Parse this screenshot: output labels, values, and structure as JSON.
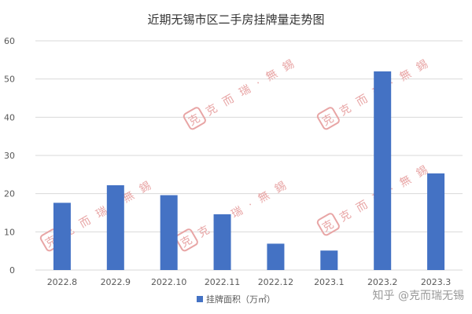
{
  "watermark": {
    "text": "克 而 瑞 · 無 錫",
    "logo_glyph": "克"
  },
  "credit": "知乎 @克而瑞无锡",
  "chart_data": {
    "type": "bar",
    "title": "近期无锡市区二手房挂牌量走势图",
    "categories": [
      "2022.8",
      "2022.9",
      "2022.10",
      "2022.11",
      "2022.12",
      "2023.1",
      "2023.2",
      "2023.3"
    ],
    "series": [
      {
        "name": "挂牌面积（万㎡）",
        "values": [
          17.6,
          22.2,
          19.6,
          14.6,
          6.9,
          5.1,
          52.0,
          25.3
        ],
        "color": "#4472c4"
      }
    ],
    "ylim": [
      0,
      60
    ],
    "yticks": [
      0,
      10,
      20,
      30,
      40,
      50,
      60
    ],
    "grid": true,
    "legend": "bottom-center"
  }
}
